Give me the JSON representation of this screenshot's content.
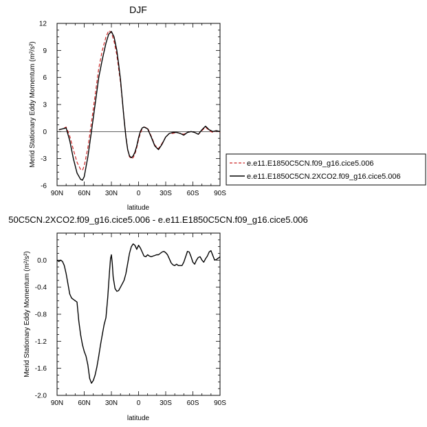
{
  "chart_data": [
    {
      "type": "line",
      "title": "DJF",
      "xlabel": "latitude",
      "ylabel": "Merid Stationary Eddy Momentum (m²/s²)",
      "xlim": [
        90,
        -90
      ],
      "ylim": [
        -6,
        12
      ],
      "x_ticks": [
        90,
        60,
        30,
        0,
        -30,
        -60,
        -90
      ],
      "x_tick_labels": [
        "90N",
        "60N",
        "30N",
        "0",
        "30S",
        "60S",
        "90S"
      ],
      "y_ticks": [
        -6,
        -3,
        0,
        3,
        6,
        9,
        12
      ],
      "y_tick_labels": [
        "-6",
        "-3",
        "0",
        "3",
        "6",
        "9",
        "12"
      ],
      "legend_placement": "right",
      "series": [
        {
          "name": "e.e11.E1850C5CN.f09_g16.cice5.006",
          "color": "#cc2222",
          "dash": "dashed",
          "x": [
            88,
            84,
            80,
            76,
            72,
            68,
            64,
            62,
            60,
            56,
            52,
            48,
            44,
            40,
            36,
            33,
            30,
            27,
            24,
            22,
            20,
            18,
            16,
            14,
            12,
            10,
            8,
            6,
            4,
            2,
            0,
            -2,
            -4,
            -6,
            -10,
            -14,
            -18,
            -22,
            -26,
            -30,
            -34,
            -38,
            -42,
            -46,
            -50,
            -54,
            -58,
            -62,
            -66,
            -70,
            -74,
            -78,
            -82,
            -86,
            -90
          ],
          "y": [
            0.2,
            0.3,
            0.5,
            -0.5,
            -2.0,
            -3.4,
            -4.2,
            -4.3,
            -3.8,
            -1.8,
            1.0,
            4.0,
            7.0,
            9.0,
            10.5,
            11.2,
            11.0,
            10.0,
            8.5,
            7.0,
            5.5,
            3.5,
            1.5,
            -0.5,
            -2.0,
            -2.8,
            -3.0,
            -2.9,
            -2.5,
            -1.8,
            -0.9,
            -0.2,
            0.3,
            0.5,
            0.4,
            -0.5,
            -1.5,
            -1.9,
            -1.3,
            -0.6,
            -0.2,
            -0.2,
            -0.1,
            -0.2,
            -0.3,
            -0.1,
            0.0,
            -0.1,
            -0.3,
            0.1,
            0.5,
            0.1,
            -0.1,
            0.1,
            -0.1
          ]
        },
        {
          "name": "e.e11.E1850C5CN.2XCO2.f09_g16.cice5.006",
          "color": "#000000",
          "dash": "solid",
          "x": [
            88,
            84,
            80,
            76,
            72,
            68,
            64,
            62,
            60,
            56,
            52,
            48,
            44,
            40,
            36,
            33,
            30,
            27,
            24,
            22,
            20,
            18,
            16,
            14,
            12,
            10,
            8,
            6,
            4,
            2,
            0,
            -2,
            -4,
            -6,
            -10,
            -14,
            -18,
            -22,
            -26,
            -30,
            -34,
            -38,
            -42,
            -46,
            -50,
            -54,
            -58,
            -62,
            -66,
            -70,
            -74,
            -78,
            -82,
            -86,
            -90
          ],
          "y": [
            0.2,
            0.3,
            0.4,
            -1.0,
            -3.0,
            -4.6,
            -5.3,
            -5.4,
            -5.0,
            -2.8,
            0.0,
            3.0,
            6.0,
            8.0,
            9.8,
            10.8,
            11.1,
            10.5,
            9.0,
            7.5,
            5.8,
            3.6,
            1.4,
            -0.6,
            -2.0,
            -2.7,
            -2.9,
            -2.7,
            -2.3,
            -1.6,
            -0.7,
            0.0,
            0.4,
            0.5,
            0.3,
            -0.6,
            -1.6,
            -2.0,
            -1.4,
            -0.6,
            -0.2,
            -0.1,
            -0.1,
            -0.2,
            -0.4,
            -0.1,
            0.0,
            -0.1,
            -0.3,
            0.2,
            0.6,
            0.2,
            0.0,
            0.1,
            0.0
          ]
        }
      ]
    },
    {
      "type": "line",
      "title": "50C5CN.2XCO2.f09_g16.cice5.006 - e.e11.E1850C5CN.f09_g16.cice5.006",
      "xlabel": "latitude",
      "ylabel": "Merid Stationary Eddy Momentum (m²/s²)",
      "xlim": [
        90,
        -90
      ],
      "ylim": [
        -2.0,
        0.4
      ],
      "x_ticks": [
        90,
        60,
        30,
        0,
        -30,
        -60,
        -90
      ],
      "x_tick_labels": [
        "90N",
        "60N",
        "30N",
        "0",
        "30S",
        "60S",
        "90S"
      ],
      "y_ticks": [
        -2.0,
        -1.6,
        -1.2,
        -0.8,
        -0.4,
        0.0
      ],
      "y_tick_labels": [
        "-2.0",
        "-1.6",
        "-1.2",
        "-0.8",
        "-0.4",
        "0.0"
      ],
      "series": [
        {
          "color": "#000000",
          "dash": "solid",
          "x": [
            90,
            88,
            86,
            84,
            82,
            80,
            78,
            76,
            74,
            72,
            70,
            68,
            66,
            64,
            62,
            60,
            58,
            56,
            54,
            52,
            50,
            48,
            46,
            44,
            42,
            40,
            38,
            36,
            34,
            32,
            31,
            30,
            29,
            28,
            26,
            24,
            22,
            20,
            18,
            16,
            14,
            12,
            10,
            8,
            6,
            4,
            2,
            0,
            -2,
            -4,
            -6,
            -8,
            -10,
            -12,
            -14,
            -16,
            -18,
            -20,
            -22,
            -24,
            -26,
            -28,
            -30,
            -32,
            -34,
            -36,
            -38,
            -40,
            -42,
            -44,
            -46,
            -48,
            -50,
            -52,
            -54,
            -56,
            -58,
            -60,
            -62,
            -64,
            -66,
            -68,
            -70,
            -72,
            -74,
            -76,
            -78,
            -80,
            -82,
            -84,
            -86,
            -88,
            -90
          ],
          "y": [
            0.0,
            -0.02,
            0.0,
            -0.02,
            -0.08,
            -0.2,
            -0.35,
            -0.5,
            -0.56,
            -0.58,
            -0.6,
            -0.62,
            -0.9,
            -1.1,
            -1.25,
            -1.35,
            -1.42,
            -1.55,
            -1.75,
            -1.82,
            -1.78,
            -1.7,
            -1.58,
            -1.42,
            -1.25,
            -1.1,
            -0.95,
            -0.85,
            -0.55,
            -0.15,
            0.02,
            0.08,
            -0.05,
            -0.25,
            -0.42,
            -0.46,
            -0.45,
            -0.4,
            -0.35,
            -0.3,
            -0.2,
            -0.05,
            0.1,
            0.2,
            0.24,
            0.22,
            0.16,
            0.22,
            0.18,
            0.12,
            0.06,
            0.05,
            0.08,
            0.06,
            0.05,
            0.06,
            0.07,
            0.08,
            0.08,
            0.1,
            0.12,
            0.13,
            0.11,
            0.08,
            0.02,
            -0.04,
            -0.07,
            -0.08,
            -0.06,
            -0.08,
            -0.08,
            -0.08,
            -0.03,
            0.05,
            0.13,
            0.12,
            0.05,
            -0.03,
            -0.06,
            0.0,
            0.04,
            0.05,
            0.0,
            -0.03,
            0.02,
            0.06,
            0.12,
            0.14,
            0.07,
            0.0,
            0.01,
            0.03,
            0.05
          ]
        }
      ]
    }
  ]
}
